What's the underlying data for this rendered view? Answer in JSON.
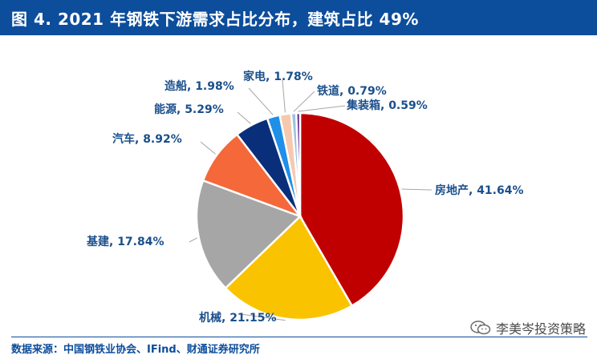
{
  "header": {
    "title": "图 4. 2021 年钢铁下游需求占比分布，建筑占比 49%"
  },
  "chart_data": {
    "type": "pie",
    "slices": [
      {
        "label": "房地产",
        "value": 41.64,
        "text": "房地产, 41.64%",
        "color": "#c00000"
      },
      {
        "label": "机械",
        "value": 21.15,
        "text": "机械, 21.15%",
        "color": "#fac300"
      },
      {
        "label": "基建",
        "value": 17.84,
        "text": "基建, 17.84%",
        "color": "#a6a6a6"
      },
      {
        "label": "汽车",
        "value": 8.92,
        "text": "汽车, 8.92%",
        "color": "#f4683a"
      },
      {
        "label": "能源",
        "value": 5.29,
        "text": "能源, 5.29%",
        "color": "#0a2f7a"
      },
      {
        "label": "造船",
        "value": 1.98,
        "text": "造船, 1.98%",
        "color": "#1f8fe8"
      },
      {
        "label": "家电",
        "value": 1.78,
        "text": "家电, 1.78%",
        "color": "#f7c8ae"
      },
      {
        "label": "铁道",
        "value": 0.79,
        "text": "铁道, 0.79%",
        "color": "#9bc2e6"
      },
      {
        "label": "集装箱",
        "value": 0.59,
        "text": "集装箱, 0.59%",
        "color": "#6b2d8f"
      }
    ]
  },
  "footer": {
    "source": "数据来源：中国钢铁业协会、IFind、财通证券研究所",
    "watermark": "李美岑投资策略"
  }
}
